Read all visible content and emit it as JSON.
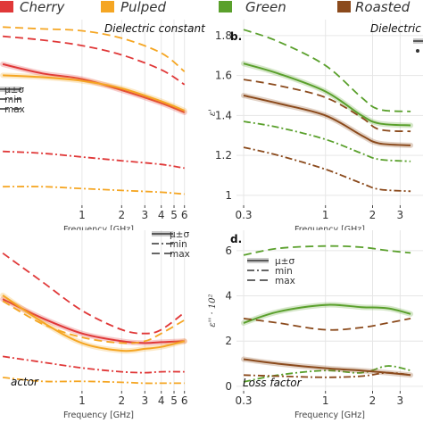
{
  "legend": {
    "items": [
      {
        "label": "Cherry",
        "color": "#e03838"
      },
      {
        "label": "Pulped",
        "color": "#f5a623"
      },
      {
        "label": "Green",
        "color": "#5aa02c"
      },
      {
        "label": "Roasted",
        "color": "#8b4a1c"
      }
    ]
  },
  "line_key": {
    "mean": "μ±σ",
    "min": "min",
    "max": "max"
  },
  "chart_data": [
    {
      "panel": "a",
      "type": "line",
      "title": "Dielectric constant",
      "letter": "",
      "xlabel": "Frequency [GHz]",
      "ylabel": "",
      "x_scale": "log",
      "xticks": [
        1,
        2,
        3,
        4,
        5,
        6
      ],
      "yticks": [],
      "ylim": [
        0.9,
        1.9
      ],
      "grid": true,
      "series": [
        {
          "name": "Cherry",
          "stat": "max",
          "x": [
            0.25,
            0.5,
            1,
            2,
            4,
            6
          ],
          "y": [
            1.81,
            1.79,
            1.76,
            1.71,
            1.63,
            1.55
          ]
        },
        {
          "name": "Cherry",
          "stat": "mean",
          "x": [
            0.25,
            0.5,
            1,
            2,
            4,
            6
          ],
          "y": [
            1.66,
            1.61,
            1.58,
            1.52,
            1.45,
            1.4
          ]
        },
        {
          "name": "Cherry",
          "stat": "min",
          "x": [
            0.25,
            0.5,
            1,
            2,
            4,
            6
          ],
          "y": [
            1.19,
            1.18,
            1.16,
            1.14,
            1.12,
            1.1
          ]
        },
        {
          "name": "Pulped",
          "stat": "max",
          "x": [
            0.25,
            0.5,
            1,
            2,
            4,
            6
          ],
          "y": [
            1.86,
            1.85,
            1.84,
            1.8,
            1.72,
            1.62
          ]
        },
        {
          "name": "Pulped",
          "stat": "mean",
          "x": [
            0.25,
            0.5,
            1,
            2,
            4,
            6
          ],
          "y": [
            1.6,
            1.59,
            1.57,
            1.53,
            1.46,
            1.41
          ]
        },
        {
          "name": "Pulped",
          "stat": "min",
          "x": [
            0.25,
            0.5,
            1,
            2,
            4,
            6
          ],
          "y": [
            1.0,
            1.0,
            0.99,
            0.98,
            0.97,
            0.96
          ]
        }
      ]
    },
    {
      "panel": "b",
      "type": "line",
      "title": "Dielectric",
      "letter": "b.",
      "xlabel": "Frequency [GHz]",
      "ylabel": "ε'",
      "x_scale": "log",
      "xticks": [
        0.3,
        1,
        2,
        3
      ],
      "yticks": [
        1,
        1.2,
        1.4,
        1.6,
        1.8
      ],
      "ylim": [
        0.95,
        1.88
      ],
      "grid": true,
      "series": [
        {
          "name": "Green",
          "stat": "max",
          "x": [
            0.3,
            0.5,
            1,
            1.7,
            2.2,
            3.5
          ],
          "y": [
            1.83,
            1.77,
            1.65,
            1.49,
            1.43,
            1.42
          ]
        },
        {
          "name": "Green",
          "stat": "mean",
          "x": [
            0.3,
            0.5,
            1,
            1.7,
            2.2,
            3.5
          ],
          "y": [
            1.66,
            1.61,
            1.52,
            1.4,
            1.36,
            1.35
          ]
        },
        {
          "name": "Green",
          "stat": "min",
          "x": [
            0.3,
            0.5,
            1,
            1.7,
            2.2,
            3.5
          ],
          "y": [
            1.37,
            1.34,
            1.28,
            1.21,
            1.18,
            1.17
          ]
        },
        {
          "name": "Roasted",
          "stat": "max",
          "x": [
            0.3,
            0.5,
            1,
            1.7,
            2.2,
            3.5
          ],
          "y": [
            1.58,
            1.55,
            1.49,
            1.39,
            1.33,
            1.32
          ]
        },
        {
          "name": "Roasted",
          "stat": "mean",
          "x": [
            0.3,
            0.5,
            1,
            1.7,
            2.2,
            3.5
          ],
          "y": [
            1.5,
            1.46,
            1.4,
            1.3,
            1.26,
            1.25
          ]
        },
        {
          "name": "Roasted",
          "stat": "min",
          "x": [
            0.3,
            0.5,
            1,
            1.7,
            2.2,
            3.5
          ],
          "y": [
            1.24,
            1.2,
            1.13,
            1.06,
            1.03,
            1.02
          ]
        }
      ]
    },
    {
      "panel": "c",
      "type": "line",
      "title": "actor",
      "letter": "",
      "xlabel": "Frequency [GHz]",
      "ylabel": "",
      "x_scale": "log",
      "xticks": [
        1,
        2,
        3,
        4,
        5,
        6
      ],
      "yticks": [],
      "ylim": [
        -0.2,
        8.2
      ],
      "grid": true,
      "series": [
        {
          "name": "Cherry",
          "stat": "max",
          "x": [
            0.25,
            0.5,
            1,
            2,
            3,
            4,
            6
          ],
          "y": [
            7.0,
            5.5,
            4.0,
            3.0,
            2.8,
            3.0,
            3.9
          ]
        },
        {
          "name": "Cherry",
          "stat": "mean",
          "x": [
            0.25,
            0.5,
            1,
            2,
            3,
            4,
            6
          ],
          "y": [
            4.6,
            3.6,
            2.8,
            2.4,
            2.3,
            2.35,
            2.4
          ]
        },
        {
          "name": "Cherry",
          "stat": "min",
          "x": [
            0.25,
            0.5,
            1,
            2,
            3,
            4,
            6
          ],
          "y": [
            1.6,
            1.3,
            1.0,
            0.8,
            0.75,
            0.8,
            0.8
          ]
        },
        {
          "name": "Pulped",
          "stat": "max",
          "x": [
            0.25,
            0.5,
            1,
            2,
            3,
            4,
            6
          ],
          "y": [
            4.5,
            3.3,
            2.6,
            2.3,
            2.4,
            2.8,
            3.5
          ]
        },
        {
          "name": "Pulped",
          "stat": "mean",
          "x": [
            0.25,
            0.5,
            1,
            2,
            3,
            4,
            6
          ],
          "y": [
            4.8,
            3.4,
            2.3,
            1.9,
            2.0,
            2.1,
            2.4
          ]
        },
        {
          "name": "Pulped",
          "stat": "min",
          "x": [
            0.25,
            0.5,
            1,
            2,
            3,
            4,
            6
          ],
          "y": [
            0.5,
            0.3,
            0.3,
            0.25,
            0.2,
            0.2,
            0.2
          ]
        }
      ]
    },
    {
      "panel": "d",
      "type": "line",
      "title": "Loss factor",
      "letter": "d.",
      "xlabel": "Frequency [GHz]",
      "ylabel": "ε'' · 10²",
      "x_scale": "log",
      "xticks": [
        0.3,
        1,
        2,
        3
      ],
      "yticks": [
        0,
        2,
        4,
        6
      ],
      "ylim": [
        -0.2,
        6.9
      ],
      "grid": true,
      "series": [
        {
          "name": "Green",
          "stat": "max",
          "x": [
            0.3,
            0.5,
            1,
            1.7,
            2.5,
            3.5
          ],
          "y": [
            5.8,
            6.1,
            6.2,
            6.15,
            6.0,
            5.9
          ]
        },
        {
          "name": "Green",
          "stat": "mean",
          "x": [
            0.3,
            0.5,
            1,
            1.7,
            2.5,
            3.5
          ],
          "y": [
            2.8,
            3.3,
            3.6,
            3.5,
            3.45,
            3.2
          ]
        },
        {
          "name": "Green",
          "stat": "min",
          "x": [
            0.3,
            0.5,
            1,
            1.7,
            2.5,
            3.5
          ],
          "y": [
            0.2,
            0.5,
            0.7,
            0.6,
            0.9,
            0.7
          ]
        },
        {
          "name": "Roasted",
          "stat": "max",
          "x": [
            0.3,
            0.5,
            1,
            1.7,
            2.5,
            3.5
          ],
          "y": [
            3.0,
            2.8,
            2.5,
            2.6,
            2.8,
            3.0
          ]
        },
        {
          "name": "Roasted",
          "stat": "mean",
          "x": [
            0.3,
            0.5,
            1,
            1.7,
            2.5,
            3.5
          ],
          "y": [
            1.2,
            1.0,
            0.8,
            0.7,
            0.6,
            0.5
          ]
        },
        {
          "name": "Roasted",
          "stat": "min",
          "x": [
            0.3,
            0.5,
            1,
            1.7,
            2.5,
            3.5
          ],
          "y": [
            0.5,
            0.45,
            0.4,
            0.45,
            0.6,
            0.5
          ]
        }
      ]
    }
  ]
}
